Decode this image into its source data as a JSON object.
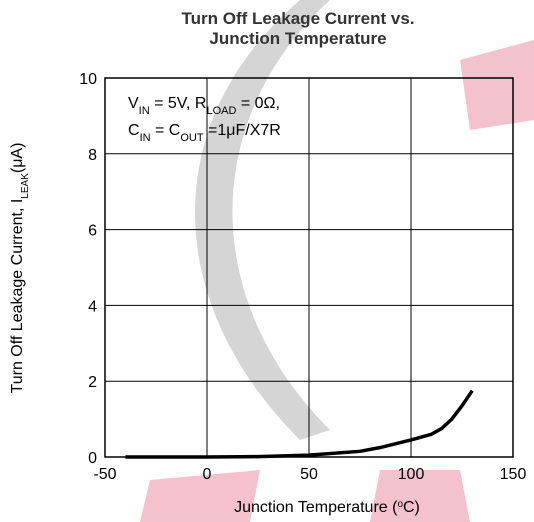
{
  "chart_data": {
    "type": "line",
    "title": [
      "Turn Off Leakage Current vs.",
      "Junction Temperature"
    ],
    "x_label": [
      "Junction Temperature (",
      "o",
      "C)"
    ],
    "y_label": [
      "Turn Off Leakage Current, I",
      "LEAK",
      "(μA)"
    ],
    "annotation": [
      [
        "V",
        "IN",
        " = 5V, R",
        "LOAD",
        " = 0Ω,"
      ],
      [
        "C",
        "IN",
        " = C",
        "OUT",
        " =1μF/X7R"
      ]
    ],
    "x": [
      -40,
      0,
      25,
      50,
      75,
      85,
      100,
      110,
      115,
      120,
      125,
      130
    ],
    "series": [
      {
        "color": "#000000",
        "values": [
          0,
          0,
          0.01,
          0.05,
          0.15,
          0.25,
          0.45,
          0.6,
          0.75,
          1.0,
          1.35,
          1.75
        ]
      }
    ],
    "xlim": [
      -50,
      150
    ],
    "xticks": [
      -50,
      0,
      50,
      100,
      150
    ],
    "ylim": [
      0,
      10
    ],
    "yticks": [
      0,
      2,
      4,
      6,
      8,
      10
    ],
    "grid": true
  }
}
